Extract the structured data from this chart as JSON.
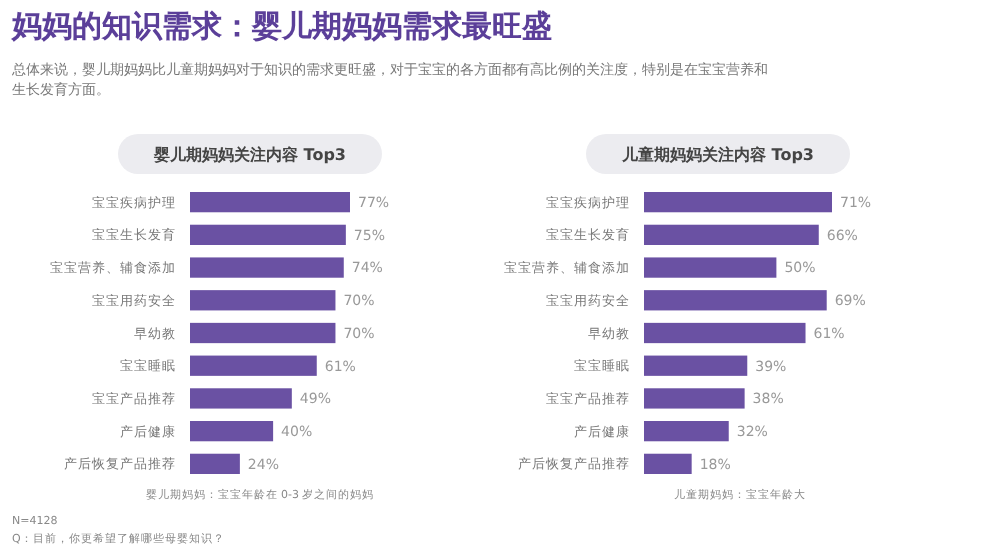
{
  "chart_data": [
    {
      "type": "bar",
      "orientation": "horizontal",
      "title": "婴儿期妈妈关注内容 Top3",
      "categories": [
        "宝宝疾病护理",
        "宝宝生长发育",
        "宝宝营养、辅食添加",
        "宝宝用药安全",
        "早幼教",
        "宝宝睡眠",
        "宝宝产品推荐",
        "产后健康",
        "产后恢复产品推荐"
      ],
      "values": [
        77,
        75,
        74,
        70,
        70,
        61,
        49,
        40,
        24
      ],
      "value_labels": [
        "77%",
        "75%",
        "74%",
        "70%",
        "70%",
        "61%",
        "49%",
        "40%",
        "24%"
      ],
      "color": "#6a51a3",
      "annotations": [
        "妈妈的知识需求：婴儿期妈妈需求最旺盛",
        "总体来说，婴儿期妈妈比儿童期妈妈对于知识的需求更旺盛，对于宝宝的各方面都有高比例的关注度，特别是在宝宝营养和生长发育方面。",
        "婴儿期妈妈：宝宝年龄在 0-3 岁之间的妈妈",
        "N=4128",
        "Q：目前，你更希望了解哪些母婴知识？"
      ]
    },
    {
      "type": "bar",
      "orientation": "horizontal",
      "title": "儿童期妈妈关注内容 Top3",
      "categories": [
        "宝宝疾病护理",
        "宝宝生长发育",
        "宝宝营养、辅食添加",
        "宝宝用药安全",
        "早幼教",
        "宝宝睡眠",
        "宝宝产品推荐",
        "产后健康",
        "产后恢复产品推荐"
      ],
      "values": [
        71,
        66,
        50,
        69,
        61,
        39,
        38,
        32,
        18
      ],
      "value_labels": [
        "71%",
        "66%",
        "50%",
        "69%",
        "61%",
        "39%",
        "38%",
        "32%",
        "18%"
      ],
      "color": "#6a51a3",
      "annotations": [
        "儿童期妈妈：宝宝年龄大"
      ]
    }
  ]
}
